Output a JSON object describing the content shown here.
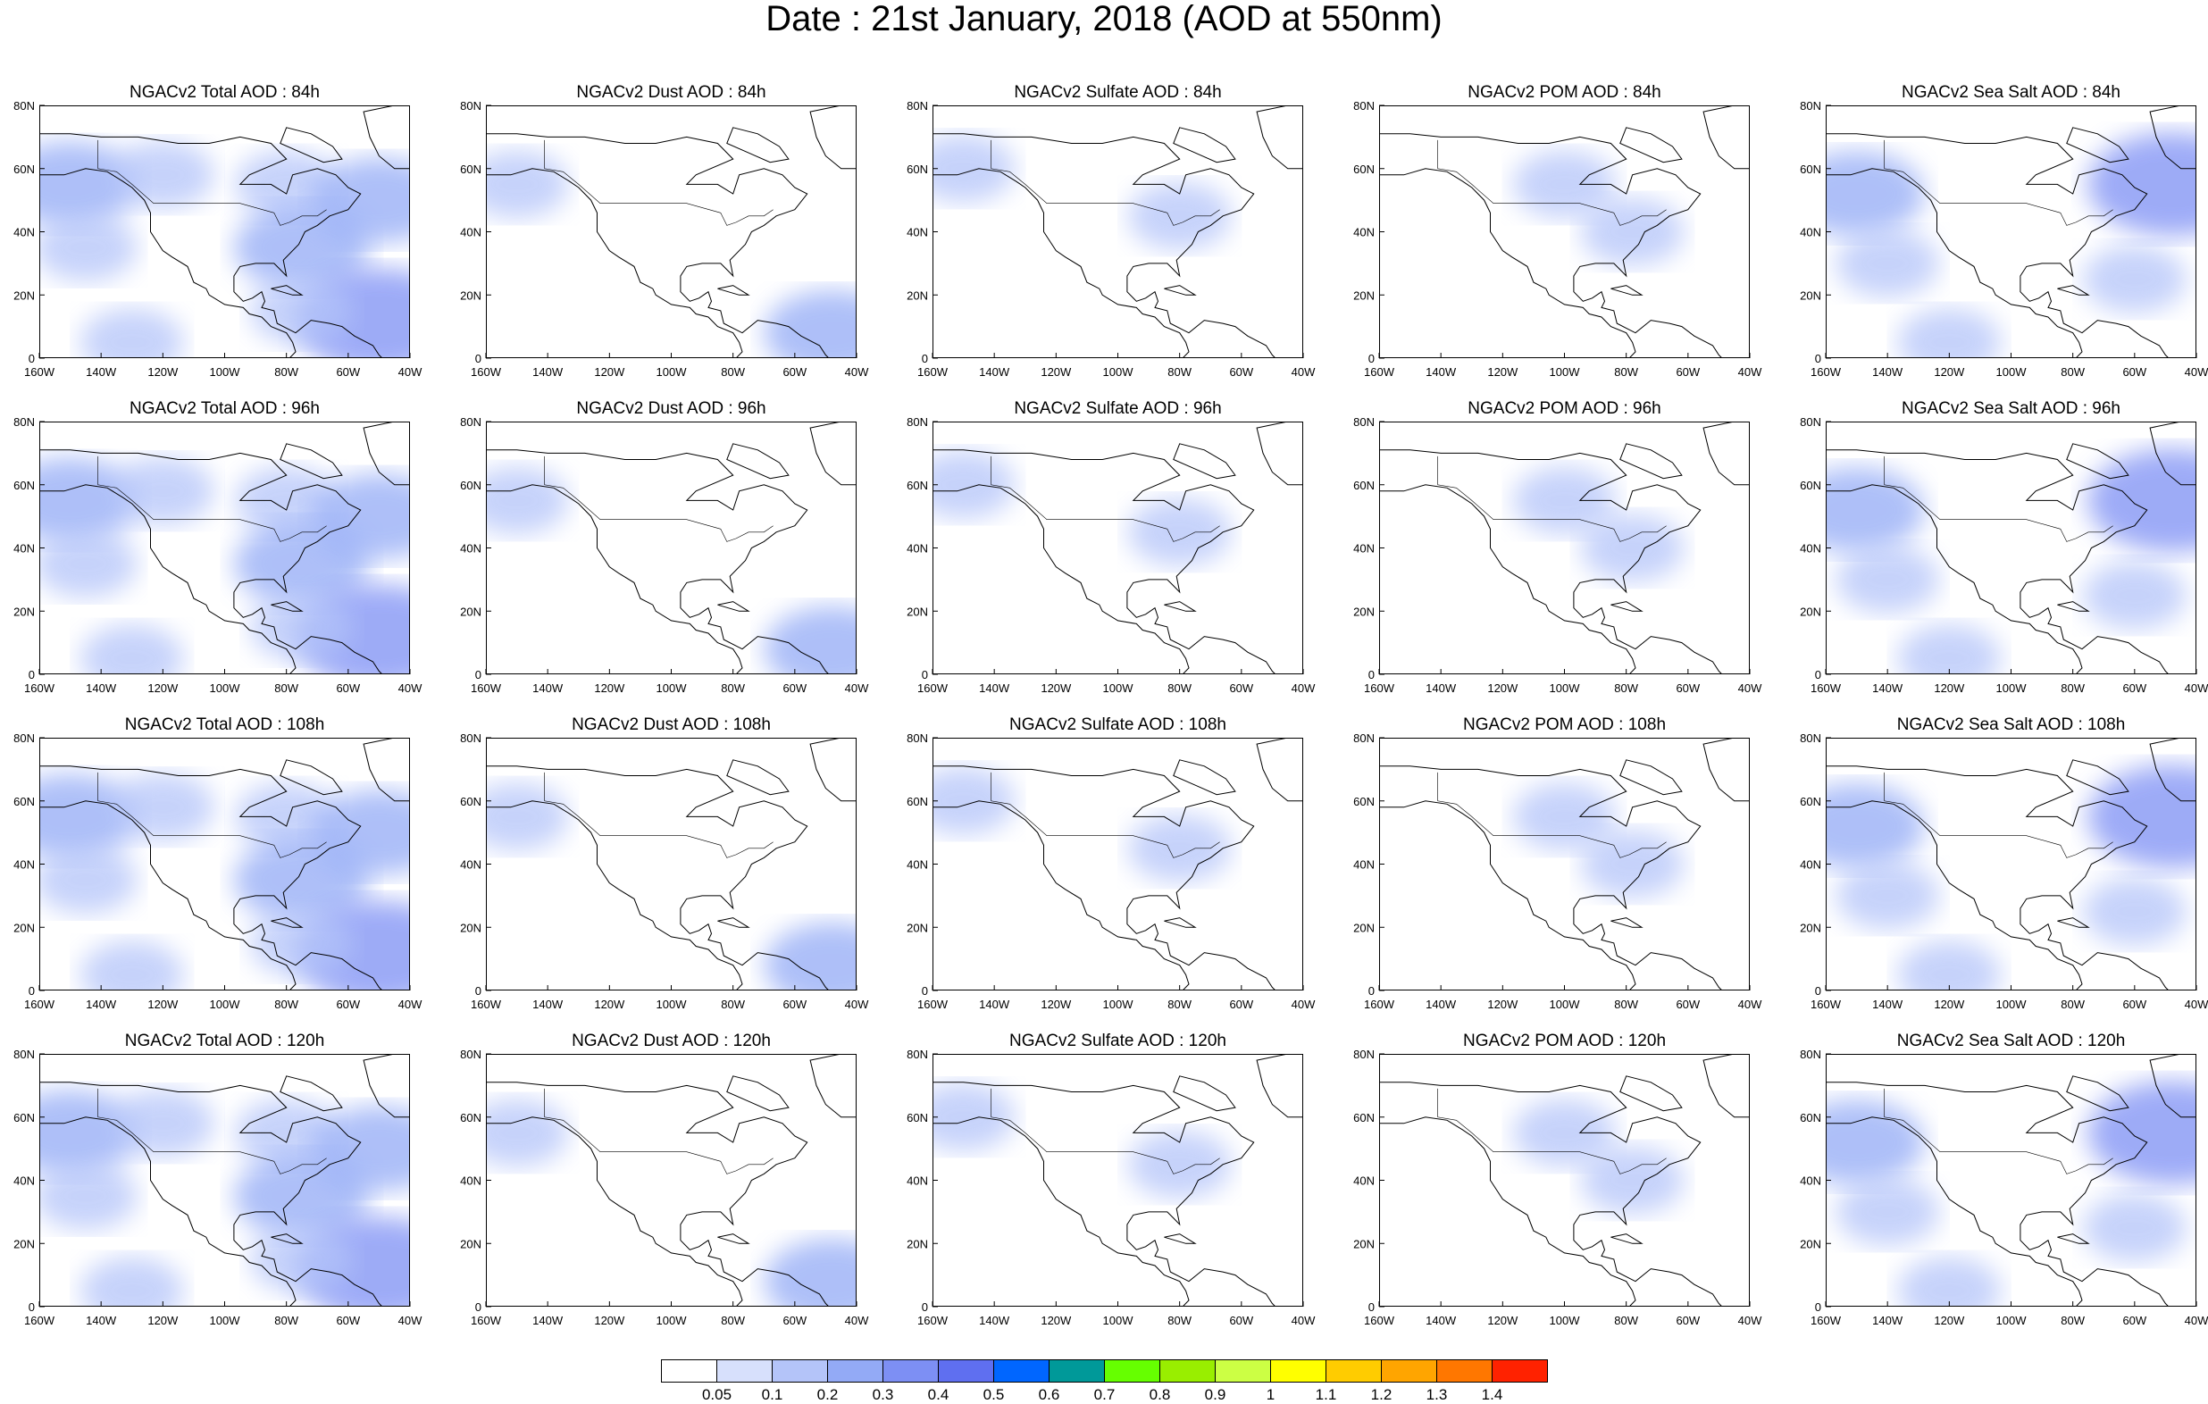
{
  "title": "Date : 21st January, 2018 (AOD at 550nm)",
  "panels": [
    {
      "row": 0,
      "col": 0,
      "title": "NGACv2 Total AOD : 84h"
    },
    {
      "row": 0,
      "col": 1,
      "title": "NGACv2 Dust AOD : 84h"
    },
    {
      "row": 0,
      "col": 2,
      "title": "NGACv2 Sulfate AOD : 84h"
    },
    {
      "row": 0,
      "col": 3,
      "title": "NGACv2 POM AOD : 84h"
    },
    {
      "row": 0,
      "col": 4,
      "title": "NGACv2 Sea Salt AOD : 84h"
    },
    {
      "row": 1,
      "col": 0,
      "title": "NGACv2 Total AOD : 96h"
    },
    {
      "row": 1,
      "col": 1,
      "title": "NGACv2 Dust AOD : 96h"
    },
    {
      "row": 1,
      "col": 2,
      "title": "NGACv2 Sulfate AOD : 96h"
    },
    {
      "row": 1,
      "col": 3,
      "title": "NGACv2 POM AOD : 96h"
    },
    {
      "row": 1,
      "col": 4,
      "title": "NGACv2 Sea Salt AOD : 96h"
    },
    {
      "row": 2,
      "col": 0,
      "title": "NGACv2 Total AOD : 108h"
    },
    {
      "row": 2,
      "col": 1,
      "title": "NGACv2 Dust AOD : 108h"
    },
    {
      "row": 2,
      "col": 2,
      "title": "NGACv2 Sulfate AOD : 108h"
    },
    {
      "row": 2,
      "col": 3,
      "title": "NGACv2 POM AOD : 108h"
    },
    {
      "row": 2,
      "col": 4,
      "title": "NGACv2 Sea Salt  AOD : 108h"
    },
    {
      "row": 3,
      "col": 0,
      "title": "NGACv2 Total AOD : 120h"
    },
    {
      "row": 3,
      "col": 1,
      "title": "NGACv2 Dust AOD : 120h"
    },
    {
      "row": 3,
      "col": 2,
      "title": "NGACv2 Sulfate AOD : 120h"
    },
    {
      "row": 3,
      "col": 3,
      "title": "NGACv2 POM AOD : 120h"
    },
    {
      "row": 3,
      "col": 4,
      "title": "NGACv2 Sea Salt  AOD : 120h"
    }
  ],
  "map": {
    "lat_ticks": [
      "80N",
      "60N",
      "40N",
      "20N",
      "0"
    ],
    "lon_ticks": [
      "160W",
      "140W",
      "120W",
      "100W",
      "80W",
      "60W",
      "40W"
    ],
    "lon_range": [
      -160,
      -40
    ],
    "lat_range": [
      0,
      80
    ]
  },
  "colorbar": {
    "labels": [
      "0.05",
      "0.1",
      "0.2",
      "0.3",
      "0.4",
      "0.5",
      "0.6",
      "0.7",
      "0.8",
      "0.9",
      "1",
      "1.1",
      "1.2",
      "1.3",
      "1.4"
    ],
    "colors": [
      "#ffffff",
      "#d7e0fc",
      "#b4c4f9",
      "#93aaf6",
      "#7d8ff4",
      "#5f6ff0",
      "#0066ff",
      "#009999",
      "#66ff00",
      "#99ee00",
      "#ccff44",
      "#ffff00",
      "#ffcc00",
      "#ffa500",
      "#ff7700",
      "#ff2200"
    ]
  },
  "aod_fields": {
    "total": [
      {
        "lon": -150,
        "lat": 55,
        "level": 2
      },
      {
        "lon": -145,
        "lat": 35,
        "level": 1
      },
      {
        "lon": -120,
        "lat": 58,
        "level": 1
      },
      {
        "lon": -80,
        "lat": 55,
        "level": 1
      },
      {
        "lon": -75,
        "lat": 35,
        "level": 2
      },
      {
        "lon": -50,
        "lat": 50,
        "level": 2
      },
      {
        "lon": -50,
        "lat": 12,
        "level": 3
      },
      {
        "lon": -75,
        "lat": 15,
        "level": 1
      },
      {
        "lon": -130,
        "lat": 5,
        "level": 1
      }
    ],
    "dust": [
      {
        "lon": -150,
        "lat": 55,
        "level": 1
      },
      {
        "lon": -48,
        "lat": 8,
        "level": 2
      }
    ],
    "sulfate": [
      {
        "lon": -80,
        "lat": 45,
        "level": 1
      },
      {
        "lon": -150,
        "lat": 60,
        "level": 1
      }
    ],
    "pom": [
      {
        "lon": -100,
        "lat": 55,
        "level": 1
      },
      {
        "lon": -78,
        "lat": 40,
        "level": 1
      }
    ],
    "seasalt": [
      {
        "lon": -150,
        "lat": 52,
        "level": 2
      },
      {
        "lon": -48,
        "lat": 55,
        "level": 3
      },
      {
        "lon": -120,
        "lat": 5,
        "level": 1
      },
      {
        "lon": -60,
        "lat": 25,
        "level": 1
      },
      {
        "lon": -140,
        "lat": 30,
        "level": 1
      }
    ]
  }
}
